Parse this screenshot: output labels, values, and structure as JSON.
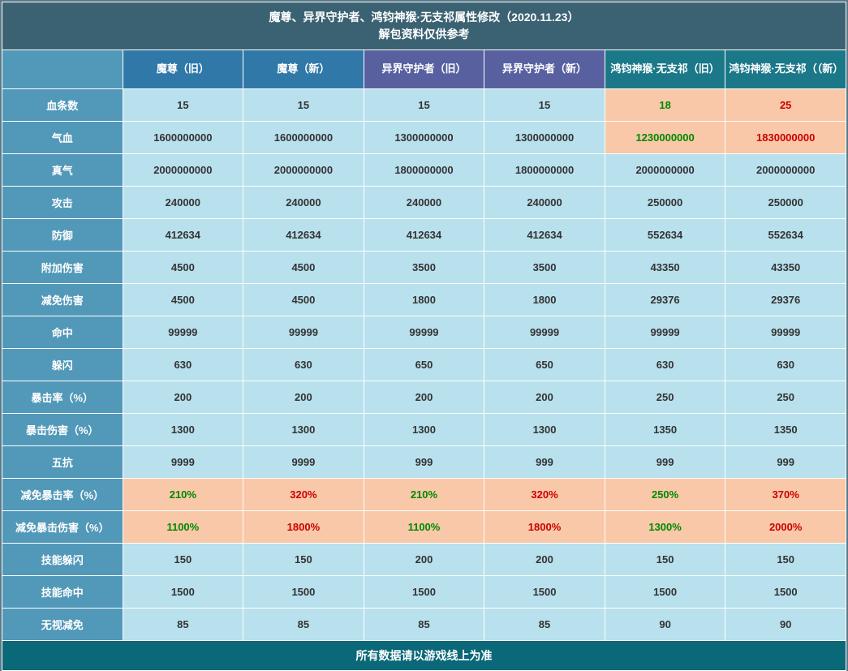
{
  "title_line1": "魔尊、异界守护者、鸿钧神猴·无支祁属性修改（2020.11.23）",
  "title_line2": "解包资料仅供参考",
  "footer": "所有数据请以游戏线上为准",
  "columns": [
    {
      "label": "",
      "header_class": "hdr-empty"
    },
    {
      "label": "魔尊（旧）",
      "header_class": "hdr-group1"
    },
    {
      "label": "魔尊（新）",
      "header_class": "hdr-group1"
    },
    {
      "label": "异界守护者（旧）",
      "header_class": "hdr-group2"
    },
    {
      "label": "异界守护者（新）",
      "header_class": "hdr-group2"
    },
    {
      "label": "鸿钧神猴·无支祁（旧）",
      "header_class": "hdr-group3"
    },
    {
      "label": "鸿钧神猴·无支祁（（新）",
      "header_class": "hdr-group3"
    }
  ],
  "rows": [
    {
      "label": "血条数",
      "cells": [
        {
          "v": "15"
        },
        {
          "v": "15"
        },
        {
          "v": "15"
        },
        {
          "v": "15"
        },
        {
          "v": "18",
          "bg": "highlight-cell",
          "color": "green-text"
        },
        {
          "v": "25",
          "bg": "highlight-cell",
          "color": "red-text"
        }
      ]
    },
    {
      "label": "气血",
      "cells": [
        {
          "v": "1600000000"
        },
        {
          "v": "1600000000"
        },
        {
          "v": "1300000000"
        },
        {
          "v": "1300000000"
        },
        {
          "v": "1230000000",
          "bg": "highlight-cell",
          "color": "green-text"
        },
        {
          "v": "1830000000",
          "bg": "highlight-cell",
          "color": "red-text"
        }
      ]
    },
    {
      "label": "真气",
      "cells": [
        {
          "v": "2000000000"
        },
        {
          "v": "2000000000"
        },
        {
          "v": "1800000000"
        },
        {
          "v": "1800000000"
        },
        {
          "v": "2000000000"
        },
        {
          "v": "2000000000"
        }
      ]
    },
    {
      "label": "攻击",
      "cells": [
        {
          "v": "240000"
        },
        {
          "v": "240000"
        },
        {
          "v": "240000"
        },
        {
          "v": "240000"
        },
        {
          "v": "250000"
        },
        {
          "v": "250000"
        }
      ]
    },
    {
      "label": "防御",
      "cells": [
        {
          "v": "412634"
        },
        {
          "v": "412634"
        },
        {
          "v": "412634"
        },
        {
          "v": "412634"
        },
        {
          "v": "552634"
        },
        {
          "v": "552634"
        }
      ]
    },
    {
      "label": "附加伤害",
      "cells": [
        {
          "v": "4500"
        },
        {
          "v": "4500"
        },
        {
          "v": "3500"
        },
        {
          "v": "3500"
        },
        {
          "v": "43350"
        },
        {
          "v": "43350"
        }
      ]
    },
    {
      "label": "减免伤害",
      "cells": [
        {
          "v": "4500"
        },
        {
          "v": "4500"
        },
        {
          "v": "1800"
        },
        {
          "v": "1800"
        },
        {
          "v": "29376"
        },
        {
          "v": "29376"
        }
      ]
    },
    {
      "label": "命中",
      "cells": [
        {
          "v": "99999"
        },
        {
          "v": "99999"
        },
        {
          "v": "99999"
        },
        {
          "v": "99999"
        },
        {
          "v": "99999"
        },
        {
          "v": "99999"
        }
      ]
    },
    {
      "label": "躲闪",
      "cells": [
        {
          "v": "630"
        },
        {
          "v": "630"
        },
        {
          "v": "650"
        },
        {
          "v": "650"
        },
        {
          "v": "630"
        },
        {
          "v": "630"
        }
      ]
    },
    {
      "label": "暴击率（%）",
      "cells": [
        {
          "v": "200"
        },
        {
          "v": "200"
        },
        {
          "v": "200"
        },
        {
          "v": "200"
        },
        {
          "v": "250"
        },
        {
          "v": "250"
        }
      ]
    },
    {
      "label": "暴击伤害（%）",
      "cells": [
        {
          "v": "1300"
        },
        {
          "v": "1300"
        },
        {
          "v": "1300"
        },
        {
          "v": "1300"
        },
        {
          "v": "1350"
        },
        {
          "v": "1350"
        }
      ]
    },
    {
      "label": "五抗",
      "cells": [
        {
          "v": "9999"
        },
        {
          "v": "9999"
        },
        {
          "v": "999"
        },
        {
          "v": "999"
        },
        {
          "v": "999"
        },
        {
          "v": "999"
        }
      ]
    },
    {
      "label": "减免暴击率（%）",
      "cells": [
        {
          "v": "210%",
          "bg": "highlight-cell",
          "color": "green-text"
        },
        {
          "v": "320%",
          "bg": "highlight-cell",
          "color": "red-text"
        },
        {
          "v": "210%",
          "bg": "highlight-cell",
          "color": "green-text"
        },
        {
          "v": "320%",
          "bg": "highlight-cell",
          "color": "red-text"
        },
        {
          "v": "250%",
          "bg": "highlight-cell",
          "color": "green-text"
        },
        {
          "v": "370%",
          "bg": "highlight-cell",
          "color": "red-text"
        }
      ]
    },
    {
      "label": "减免暴击伤害（%）",
      "cells": [
        {
          "v": "1100%",
          "bg": "highlight-cell",
          "color": "green-text"
        },
        {
          "v": "1800%",
          "bg": "highlight-cell",
          "color": "red-text"
        },
        {
          "v": "1100%",
          "bg": "highlight-cell",
          "color": "green-text"
        },
        {
          "v": "1800%",
          "bg": "highlight-cell",
          "color": "red-text"
        },
        {
          "v": "1300%",
          "bg": "highlight-cell",
          "color": "green-text"
        },
        {
          "v": "2000%",
          "bg": "highlight-cell",
          "color": "red-text"
        }
      ]
    },
    {
      "label": "技能躲闪",
      "cells": [
        {
          "v": "150"
        },
        {
          "v": "150"
        },
        {
          "v": "200"
        },
        {
          "v": "200"
        },
        {
          "v": "150"
        },
        {
          "v": "150"
        }
      ]
    },
    {
      "label": "技能命中",
      "cells": [
        {
          "v": "1500"
        },
        {
          "v": "1500"
        },
        {
          "v": "1500"
        },
        {
          "v": "1500"
        },
        {
          "v": "1500"
        },
        {
          "v": "1500"
        }
      ]
    },
    {
      "label": "无视减免",
      "cells": [
        {
          "v": "85"
        },
        {
          "v": "85"
        },
        {
          "v": "85"
        },
        {
          "v": "85"
        },
        {
          "v": "90"
        },
        {
          "v": "90"
        }
      ]
    }
  ],
  "styling": {
    "title_bg": "#3a6272",
    "row_label_bg": "#5298b8",
    "data_cell_bg": "#b8e0ed",
    "highlight_bg": "#f8c8a8",
    "footer_bg": "#0a6878",
    "border_color": "#ffffff",
    "green": "#008800",
    "red": "#cc0000",
    "header_group1_bg": "#3078a8",
    "header_group2_bg": "#5860a0",
    "header_group3_bg": "#1a7888",
    "font_family": "Microsoft YaHei",
    "cell_font_size": 13,
    "title_font_size": 14
  }
}
